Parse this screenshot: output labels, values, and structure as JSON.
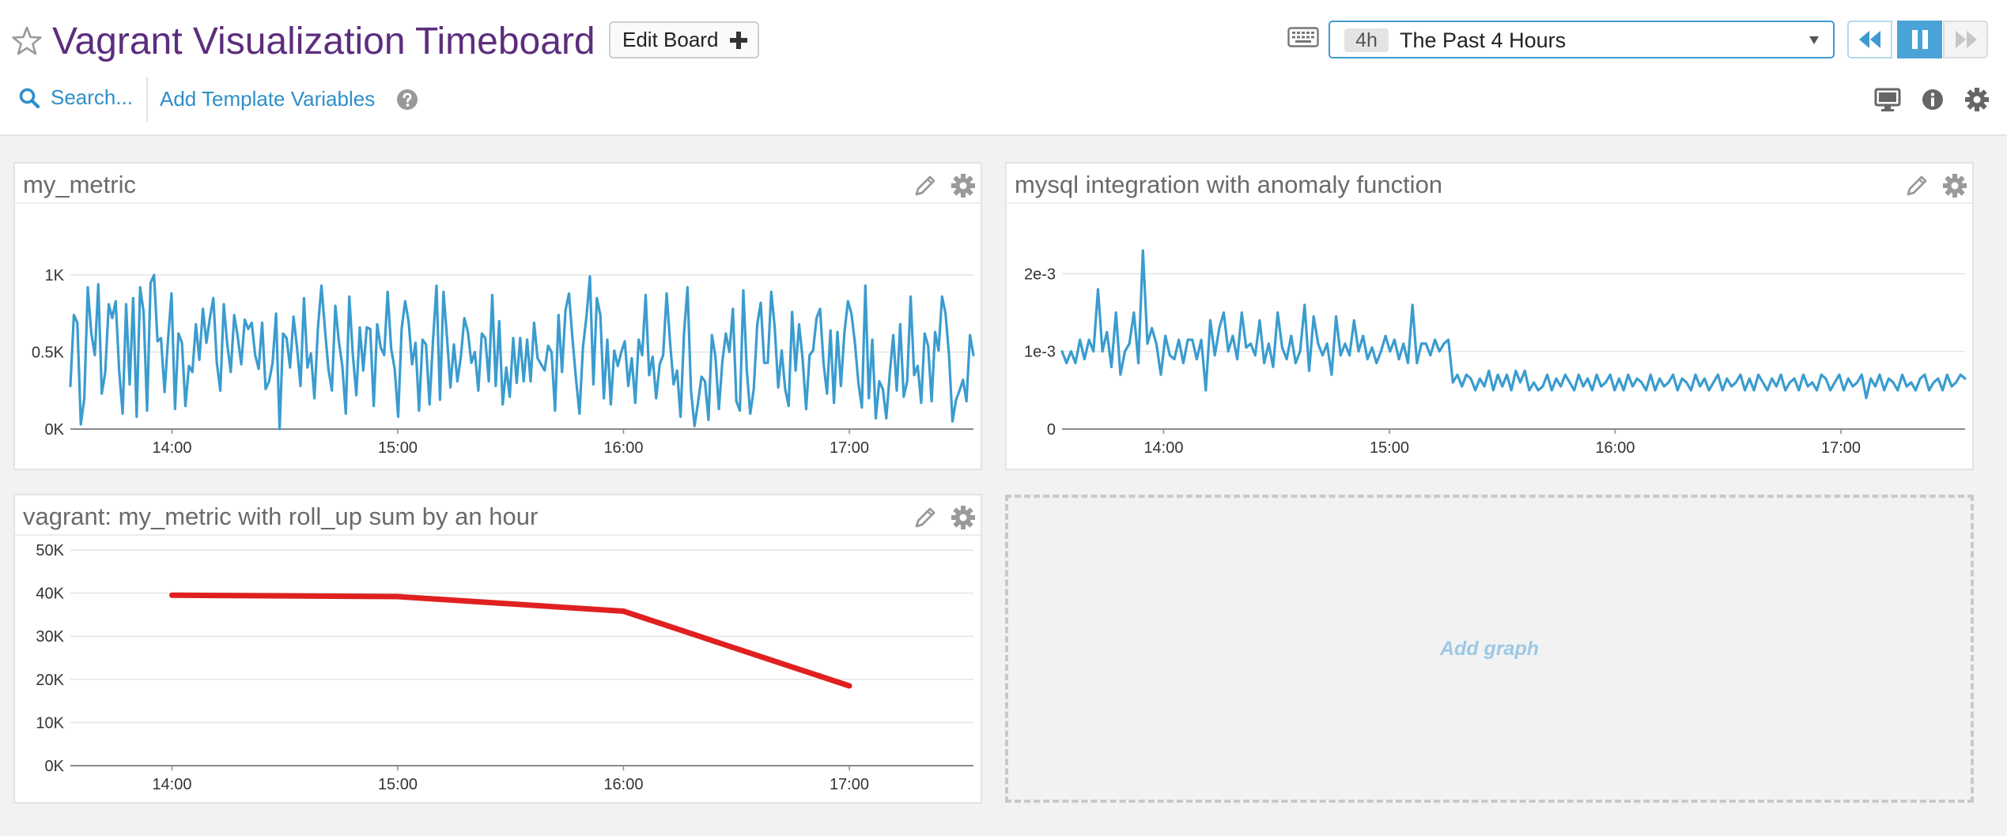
{
  "header": {
    "title": "Vagrant Visualization Timeboard",
    "edit_board_label": "Edit Board",
    "timeframe_badge": "4h",
    "timeframe_label": "The Past 4 Hours",
    "search_label": "Search...",
    "template_vars_label": "Add Template Variables",
    "icons": [
      "star-icon",
      "plus-icon",
      "keyboard-icon",
      "caret-down-icon",
      "rewind-icon",
      "pause-icon",
      "fast-forward-icon",
      "search-icon",
      "help-icon",
      "monitor-icon",
      "info-icon",
      "gear-icon"
    ]
  },
  "colors": {
    "title": "#5c2d7d",
    "accent": "#2e8fc9",
    "series_blue": "#3a9ccf",
    "series_red": "#e02020"
  },
  "widgets": [
    {
      "title": "my_metric"
    },
    {
      "title": "mysql integration with anomaly function"
    },
    {
      "title": "vagrant: my_metric with roll_up sum by an hour"
    }
  ],
  "add_graph_label": "Add graph",
  "chart_data": [
    {
      "type": "line",
      "title": "my_metric",
      "x_ticks": [
        "14:00",
        "15:00",
        "16:00",
        "17:00"
      ],
      "x_range": [
        "13:33",
        "17:33"
      ],
      "y_ticks": [
        "0K",
        "0.5K",
        "1K"
      ],
      "ylim": [
        0,
        1000
      ],
      "grid": true,
      "series": [
        {
          "values": [
            280,
            740,
            690,
            30,
            200,
            920,
            620,
            480,
            940,
            230,
            370,
            810,
            720,
            830,
            380,
            100,
            810,
            290,
            850,
            80,
            920,
            760,
            120,
            950,
            1000,
            570,
            590,
            240,
            580,
            880,
            130,
            620,
            560,
            150,
            410,
            370,
            680,
            450,
            780,
            560,
            720,
            850,
            430,
            250,
            810,
            550,
            370,
            740,
            600,
            420,
            710,
            650,
            690,
            480,
            390,
            690,
            260,
            310,
            430,
            750,
            0,
            620,
            590,
            400,
            730,
            530,
            280,
            850,
            400,
            490,
            200,
            660,
            930,
            650,
            390,
            250,
            800,
            570,
            410,
            100,
            860,
            480,
            220,
            660,
            380,
            660,
            650,
            150,
            680,
            530,
            480,
            890,
            520,
            390,
            80,
            650,
            830,
            700,
            420,
            560,
            120,
            580,
            550,
            160,
            580,
            930,
            190,
            890,
            600,
            270,
            550,
            310,
            470,
            720,
            630,
            430,
            500,
            250,
            620,
            590,
            310,
            870,
            280,
            700,
            160,
            400,
            210,
            590,
            300,
            590,
            310,
            580,
            310,
            690,
            460,
            420,
            380,
            540,
            500,
            120,
            740,
            370,
            770,
            880,
            590,
            330,
            100,
            530,
            730,
            990,
            290,
            850,
            740,
            200,
            580,
            160,
            510,
            410,
            500,
            570,
            280,
            460,
            170,
            580,
            480,
            870,
            350,
            470,
            200,
            420,
            480,
            880,
            560,
            290,
            380,
            80,
            620,
            920,
            250,
            20,
            170,
            340,
            310,
            60,
            610,
            470,
            130,
            440,
            620,
            500,
            780,
            180,
            120,
            900,
            380,
            100,
            260,
            680,
            820,
            430,
            430,
            890,
            660,
            270,
            510,
            260,
            150,
            760,
            380,
            680,
            460,
            130,
            480,
            510,
            720,
            780,
            430,
            230,
            640,
            170,
            630,
            280,
            630,
            830,
            750,
            560,
            300,
            140,
            930,
            200,
            580,
            70,
            310,
            260,
            70,
            360,
            610,
            250,
            680,
            210,
            310,
            860,
            350,
            410,
            170,
            620,
            540,
            180,
            630,
            510,
            860,
            750,
            480,
            50,
            190,
            250,
            320,
            180,
            610,
            480
          ]
        }
      ]
    },
    {
      "type": "line",
      "title": "mysql integration with anomaly function",
      "x_ticks": [
        "14:00",
        "15:00",
        "16:00",
        "17:00"
      ],
      "x_range": [
        "13:33",
        "17:33"
      ],
      "y_ticks": [
        "0",
        "1e-3",
        "2e-3"
      ],
      "ylim": [
        0,
        0.0023
      ],
      "grid": true,
      "series": [
        {
          "values": [
            0.001,
            0.00085,
            0.001,
            0.00085,
            0.00115,
            0.0009,
            0.00115,
            0.001,
            0.0018,
            0.001,
            0.00125,
            0.0008,
            0.0015,
            0.0007,
            0.001,
            0.0011,
            0.0015,
            0.00085,
            0.0023,
            0.0011,
            0.0013,
            0.0011,
            0.0007,
            0.0012,
            0.00095,
            0.0009,
            0.00115,
            0.00085,
            0.00115,
            0.00115,
            0.0009,
            0.00115,
            0.0005,
            0.0014,
            0.00095,
            0.0013,
            0.0015,
            0.001,
            0.0012,
            0.0009,
            0.0015,
            0.00105,
            0.0011,
            0.00095,
            0.0014,
            0.00085,
            0.0011,
            0.0008,
            0.0015,
            0.00105,
            0.0009,
            0.0012,
            0.00085,
            0.001,
            0.0016,
            0.00075,
            0.00145,
            0.0011,
            0.00095,
            0.0011,
            0.0007,
            0.00145,
            0.00095,
            0.0011,
            0.00095,
            0.0014,
            0.001,
            0.0012,
            0.0009,
            0.00105,
            0.00085,
            0.001,
            0.0012,
            0.001,
            0.00115,
            0.0009,
            0.0011,
            0.00085,
            0.0016,
            0.00085,
            0.0011,
            0.0011,
            0.00095,
            0.00115,
            0.001,
            0.0011,
            0.00115,
            0.0006,
            0.0007,
            0.00055,
            0.0007,
            0.00065,
            0.0005,
            0.00065,
            0.00055,
            0.00075,
            0.0005,
            0.0007,
            0.00055,
            0.0007,
            0.0005,
            0.00075,
            0.0006,
            0.00075,
            0.0005,
            0.0006,
            0.0005,
            0.00055,
            0.0007,
            0.0005,
            0.00065,
            0.00055,
            0.0007,
            0.0006,
            0.0005,
            0.0007,
            0.00055,
            0.00065,
            0.0005,
            0.0007,
            0.00055,
            0.0006,
            0.0007,
            0.0005,
            0.00065,
            0.0005,
            0.0007,
            0.00055,
            0.00065,
            0.0006,
            0.0005,
            0.0007,
            0.0005,
            0.00065,
            0.00055,
            0.0006,
            0.0007,
            0.0005,
            0.00065,
            0.0006,
            0.0005,
            0.0007,
            0.00055,
            0.00065,
            0.0005,
            0.0006,
            0.0007,
            0.0005,
            0.00065,
            0.00055,
            0.0006,
            0.0007,
            0.0005,
            0.00065,
            0.0005,
            0.0007,
            0.0006,
            0.0005,
            0.00065,
            0.00055,
            0.0007,
            0.0005,
            0.0006,
            0.00065,
            0.0005,
            0.0007,
            0.00055,
            0.0006,
            0.0005,
            0.0007,
            0.00065,
            0.0005,
            0.0006,
            0.0007,
            0.0005,
            0.00065,
            0.00055,
            0.0006,
            0.0007,
            0.0004,
            0.00065,
            0.00055,
            0.0007,
            0.0005,
            0.00065,
            0.0006,
            0.0005,
            0.0007,
            0.00055,
            0.0006,
            0.0005,
            0.00065,
            0.0007,
            0.0005,
            0.0006,
            0.00065,
            0.0005,
            0.0007,
            0.00055,
            0.0006,
            0.0007,
            0.00065
          ]
        }
      ]
    },
    {
      "type": "line",
      "title": "vagrant: my_metric with roll_up sum by an hour",
      "x_ticks": [
        "14:00",
        "15:00",
        "16:00",
        "17:00"
      ],
      "x_range": [
        "13:33",
        "17:33"
      ],
      "y_ticks": [
        "0K",
        "10K",
        "20K",
        "30K",
        "40K",
        "50K"
      ],
      "ylim": [
        0,
        50000
      ],
      "grid": true,
      "series": [
        {
          "x": [
            "14:00",
            "15:00",
            "16:00",
            "17:00"
          ],
          "values": [
            39500,
            39200,
            35800,
            18500
          ]
        }
      ]
    }
  ]
}
